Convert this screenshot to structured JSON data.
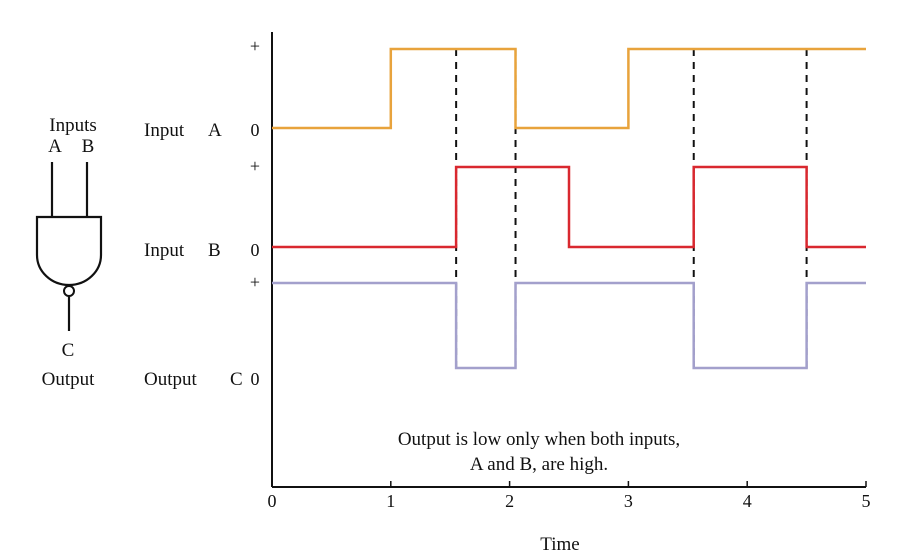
{
  "gate": {
    "inputs_label": "Inputs",
    "input_a_label": "A",
    "input_b_label": "B",
    "output_letter": "C",
    "output_label": "Output"
  },
  "rows": [
    {
      "name": "Input",
      "letter": "A",
      "zero_label": "0",
      "plus_label": "+"
    },
    {
      "name": "Input",
      "letter": "B",
      "zero_label": "0",
      "plus_label": "+"
    },
    {
      "name": "Output",
      "letter": "C",
      "zero_label": "0",
      "plus_label": "+"
    }
  ],
  "note": {
    "line1": "Output is low only when both inputs,",
    "line2": "A and B, are high."
  },
  "colors": {
    "input_a": "#E8A33C",
    "input_b": "#D9282F",
    "output_c": "#A3A0CC",
    "axis": "#111111"
  },
  "chart_data": {
    "type": "line",
    "xlabel": "Time",
    "xlim": [
      0,
      5
    ],
    "xticks": [
      "0",
      "1",
      "2",
      "3",
      "4",
      "5"
    ],
    "series": [
      {
        "name": "Input A",
        "x": [
          0,
          1,
          1,
          2.05,
          2.05,
          3,
          3,
          5
        ],
        "y": [
          0,
          0,
          1,
          1,
          0,
          0,
          1,
          1
        ]
      },
      {
        "name": "Input B",
        "x": [
          0,
          1.55,
          1.55,
          2.5,
          2.5,
          3.55,
          3.55,
          4.5,
          4.5,
          5
        ],
        "y": [
          0,
          0,
          1,
          1,
          0,
          0,
          1,
          1,
          0,
          0
        ]
      },
      {
        "name": "Output C",
        "x": [
          0,
          1.55,
          1.55,
          2.05,
          2.05,
          3.55,
          3.55,
          4.5,
          4.5,
          5
        ],
        "y": [
          1,
          1,
          0,
          0,
          1,
          1,
          0,
          0,
          1,
          1
        ]
      }
    ],
    "transitions": [
      1.55,
      2.05,
      3.55,
      4.5
    ]
  }
}
